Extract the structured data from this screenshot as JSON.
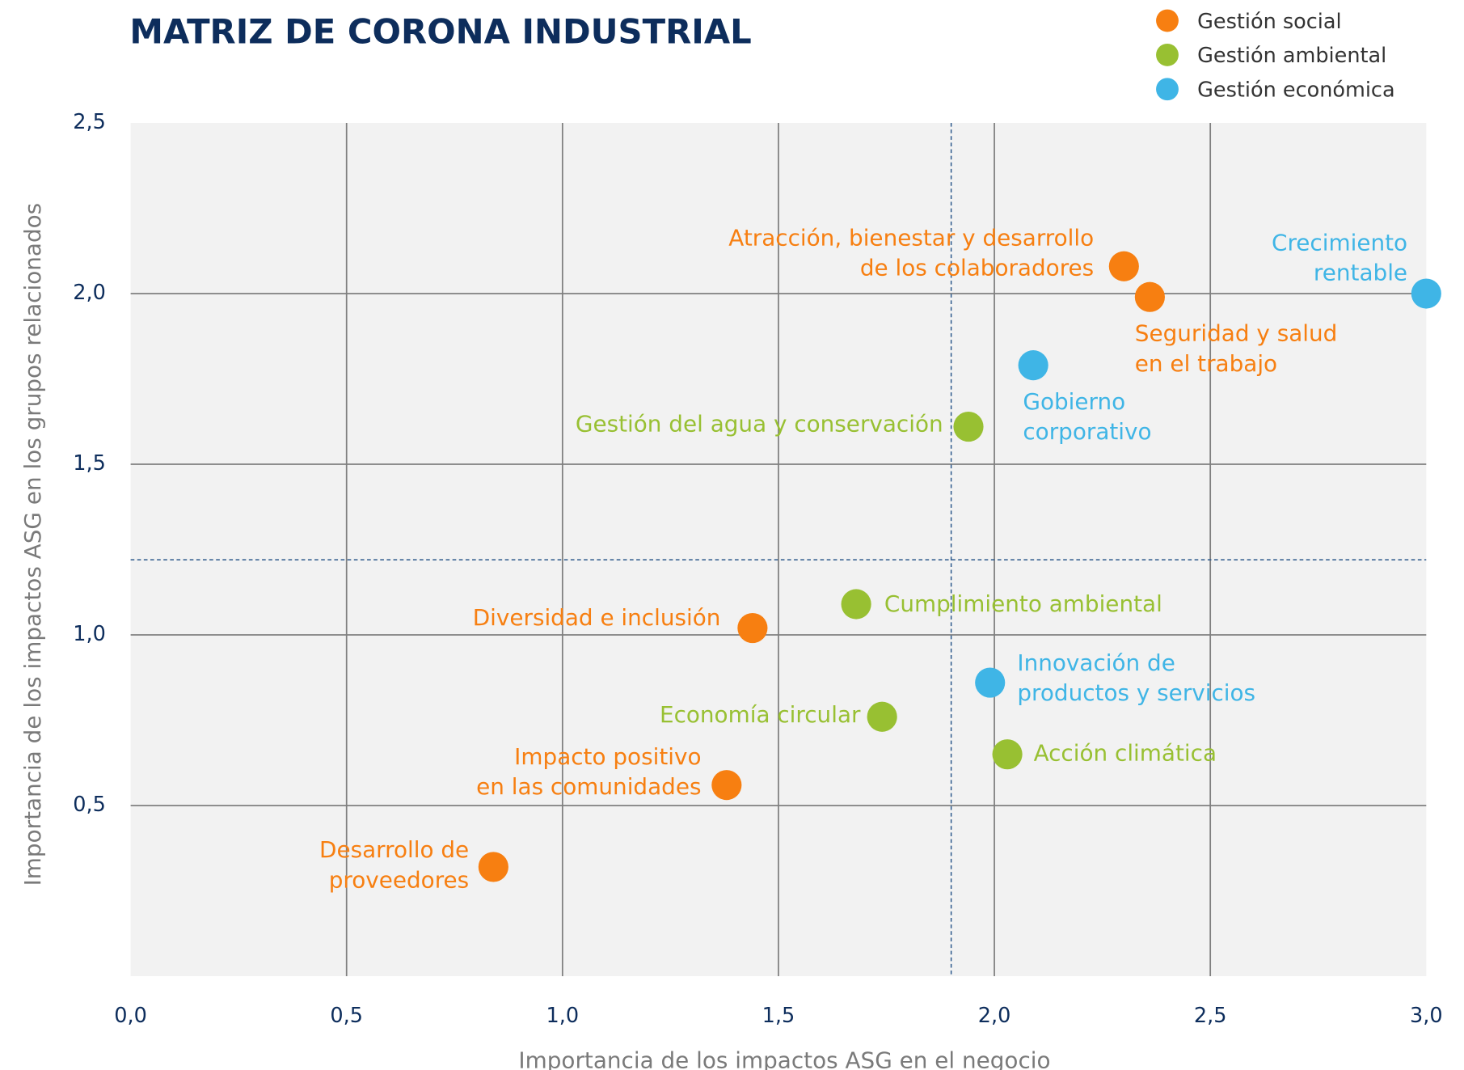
{
  "chart_data": {
    "type": "scatter",
    "title": "MATRIZ DE CORONA INDUSTRIAL",
    "x_label": "Importancia de los impactos ASG en el negocio",
    "y_label": "Importancia de los impactos ASG en los grupos relacionados",
    "xlim": [
      0,
      3
    ],
    "ylim": [
      0,
      2.5
    ],
    "xticks": [
      {
        "value": 0,
        "label": "0,0"
      },
      {
        "value": 0.5,
        "label": "0,5"
      },
      {
        "value": 1,
        "label": "1,0"
      },
      {
        "value": 1.5,
        "label": "1,5"
      },
      {
        "value": 2,
        "label": "2,0"
      },
      {
        "value": 2.5,
        "label": "2,5"
      },
      {
        "value": 3,
        "label": "3,0"
      }
    ],
    "yticks": [
      {
        "value": 0.5,
        "label": "0,5"
      },
      {
        "value": 1,
        "label": "1,0"
      },
      {
        "value": 1.5,
        "label": "1,5"
      },
      {
        "value": 2,
        "label": "2,0"
      },
      {
        "value": 2.5,
        "label": "2,5"
      }
    ],
    "grid": true,
    "reference_lines": {
      "x": 1.9,
      "y": 1.22
    },
    "legend": "top-right",
    "series": [
      {
        "name": "Gestión social",
        "color": "#f77f11",
        "points": [
          {
            "label": [
              "Atracción, bienestar y desarrollo",
              "de los colaboradores"
            ],
            "x": 2.3,
            "y": 2.08
          },
          {
            "label": [
              "Seguridad y salud",
              "en el trabajo"
            ],
            "x": 2.36,
            "y": 1.99
          },
          {
            "label": [
              "Diversidad e inclusión"
            ],
            "x": 1.44,
            "y": 1.02
          },
          {
            "label": [
              "Impacto positivo",
              "en las comunidades"
            ],
            "x": 1.38,
            "y": 0.56
          },
          {
            "label": [
              "Desarrollo de",
              "proveedores"
            ],
            "x": 0.84,
            "y": 0.32
          }
        ]
      },
      {
        "name": "Gestión ambiental",
        "color": "#98c032",
        "points": [
          {
            "label": [
              "Gestión del agua y conservación"
            ],
            "x": 1.94,
            "y": 1.61
          },
          {
            "label": [
              "Cumplimiento ambiental"
            ],
            "x": 1.68,
            "y": 1.09
          },
          {
            "label": [
              "Economía circular"
            ],
            "x": 1.74,
            "y": 0.76
          },
          {
            "label": [
              "Acción climática"
            ],
            "x": 2.03,
            "y": 0.65
          }
        ]
      },
      {
        "name": "Gestión económica",
        "color": "#3fb5e6",
        "points": [
          {
            "label": [
              "Crecimiento",
              "rentable"
            ],
            "x": 3.0,
            "y": 2.0
          },
          {
            "label": [
              "Gobierno",
              "corporativo"
            ],
            "x": 2.09,
            "y": 1.79
          },
          {
            "label": [
              "Innovación de",
              "productos y servicios"
            ],
            "x": 1.99,
            "y": 0.86
          }
        ]
      }
    ]
  }
}
